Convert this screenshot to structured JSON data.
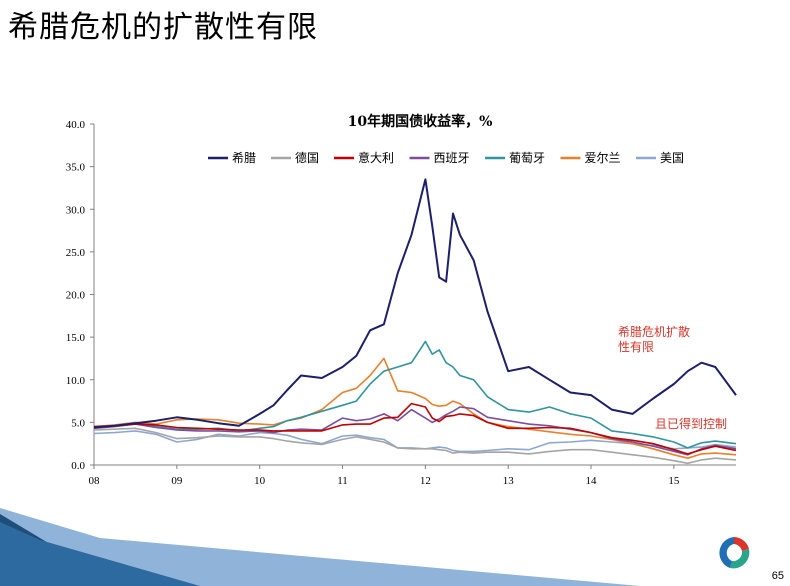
{
  "slide": {
    "title": "希腊危机的扩散性有限",
    "page_number": "65"
  },
  "colors": {
    "希腊": "#1c1f6b",
    "德国": "#a5a5a5",
    "意大利": "#c00000",
    "西班牙": "#7b4f9d",
    "葡萄牙": "#31949f",
    "爱尔兰": "#e8802c",
    "美国": "#8ea7d1",
    "annotation": "#d9352a",
    "logo_red": "#d9352a",
    "logo_blue": "#1f6fb4",
    "logo_teal": "#2aa58c",
    "footer_dark": "#1f4e79",
    "footer_light": "#8fb3d9"
  },
  "chart_data": {
    "type": "line",
    "title": "10年期国债收益率，%",
    "xlabel": "",
    "ylabel": "",
    "ylim": [
      0,
      40
    ],
    "xlim": [
      "2008-01",
      "2015-10"
    ],
    "y_ticks": [
      "0.0",
      "5.0",
      "10.0",
      "15.0",
      "20.0",
      "25.0",
      "30.0",
      "35.0",
      "40.0"
    ],
    "x_ticks": [
      "08",
      "09",
      "10",
      "11",
      "12",
      "13",
      "14",
      "15"
    ],
    "legend_position": "top",
    "grid": false,
    "x": [
      "2008-01",
      "2008-04",
      "2008-07",
      "2008-10",
      "2009-01",
      "2009-04",
      "2009-07",
      "2009-10",
      "2010-01",
      "2010-03",
      "2010-05",
      "2010-07",
      "2010-10",
      "2011-01",
      "2011-03",
      "2011-05",
      "2011-07",
      "2011-09",
      "2011-11",
      "2012-01",
      "2012-02",
      "2012-03",
      "2012-04",
      "2012-05",
      "2012-06",
      "2012-08",
      "2012-10",
      "2013-01",
      "2013-04",
      "2013-07",
      "2013-10",
      "2014-01",
      "2014-04",
      "2014-07",
      "2014-10",
      "2015-01",
      "2015-03",
      "2015-05",
      "2015-07",
      "2015-10"
    ],
    "series": [
      {
        "name": "希腊",
        "values": [
          4.4,
          4.6,
          4.9,
          5.2,
          5.6,
          5.3,
          4.9,
          4.6,
          6.0,
          7.0,
          8.8,
          10.5,
          10.2,
          11.5,
          12.8,
          15.8,
          16.5,
          22.5,
          27.0,
          33.5,
          28.0,
          22.0,
          21.5,
          29.5,
          27.0,
          24.0,
          18.0,
          11.0,
          11.5,
          10.0,
          8.5,
          8.2,
          6.5,
          6.0,
          7.8,
          9.5,
          11.0,
          12.0,
          11.5,
          8.2
        ]
      },
      {
        "name": "德国",
        "values": [
          4.1,
          4.2,
          4.3,
          3.8,
          3.1,
          3.2,
          3.4,
          3.3,
          3.3,
          3.1,
          2.8,
          2.6,
          2.4,
          3.0,
          3.3,
          3.0,
          2.7,
          2.0,
          1.9,
          1.9,
          1.9,
          1.8,
          1.7,
          1.4,
          1.5,
          1.4,
          1.5,
          1.5,
          1.3,
          1.6,
          1.8,
          1.8,
          1.5,
          1.2,
          0.9,
          0.5,
          0.2,
          0.6,
          0.8,
          0.6
        ]
      },
      {
        "name": "意大利",
        "values": [
          4.5,
          4.6,
          4.8,
          4.7,
          4.4,
          4.3,
          4.2,
          4.1,
          4.1,
          4.0,
          4.0,
          4.0,
          4.0,
          4.7,
          4.8,
          4.8,
          5.5,
          5.6,
          7.2,
          6.8,
          5.5,
          5.1,
          5.7,
          5.8,
          6.0,
          5.8,
          5.0,
          4.3,
          4.3,
          4.4,
          4.3,
          3.8,
          3.2,
          2.9,
          2.5,
          1.8,
          1.3,
          1.8,
          2.2,
          1.7
        ]
      },
      {
        "name": "西班牙",
        "values": [
          4.3,
          4.5,
          4.8,
          4.4,
          4.1,
          4.0,
          4.0,
          3.9,
          4.0,
          3.8,
          4.1,
          4.2,
          4.1,
          5.5,
          5.2,
          5.4,
          6.0,
          5.2,
          6.5,
          5.5,
          5.0,
          5.4,
          5.9,
          6.3,
          6.8,
          6.6,
          5.6,
          5.2,
          4.8,
          4.6,
          4.2,
          3.8,
          3.1,
          2.7,
          2.2,
          1.6,
          1.2,
          1.9,
          2.3,
          1.9
        ]
      },
      {
        "name": "葡萄牙",
        "values": [
          4.4,
          4.6,
          4.9,
          4.5,
          4.2,
          4.2,
          4.3,
          4.0,
          4.3,
          4.5,
          5.2,
          5.6,
          6.3,
          7.0,
          7.5,
          9.5,
          11.0,
          11.5,
          12.0,
          14.5,
          13.0,
          13.5,
          12.0,
          11.5,
          10.5,
          10.0,
          8.0,
          6.5,
          6.2,
          6.8,
          6.0,
          5.5,
          4.0,
          3.7,
          3.3,
          2.7,
          2.0,
          2.6,
          2.8,
          2.5
        ]
      },
      {
        "name": "爱尔兰",
        "values": [
          4.5,
          4.7,
          5.0,
          4.8,
          5.3,
          5.4,
          5.3,
          4.9,
          4.8,
          4.7,
          5.2,
          5.5,
          6.5,
          8.5,
          9.0,
          10.5,
          12.5,
          8.7,
          8.5,
          7.8,
          7.1,
          6.9,
          7.0,
          7.5,
          7.2,
          6.0,
          5.0,
          4.5,
          4.2,
          3.9,
          3.6,
          3.4,
          3.0,
          2.5,
          1.9,
          1.2,
          0.8,
          1.3,
          1.4,
          1.2
        ]
      },
      {
        "name": "美国",
        "values": [
          3.7,
          3.8,
          4.0,
          3.6,
          2.7,
          3.0,
          3.6,
          3.4,
          3.8,
          3.7,
          3.5,
          3.0,
          2.5,
          3.4,
          3.5,
          3.2,
          3.0,
          2.0,
          2.0,
          1.9,
          2.0,
          2.1,
          2.0,
          1.7,
          1.6,
          1.6,
          1.7,
          1.9,
          1.8,
          2.6,
          2.7,
          2.9,
          2.7,
          2.5,
          2.3,
          1.9,
          2.0,
          2.1,
          2.4,
          2.1
        ]
      }
    ],
    "annotations": [
      {
        "text_lines": [
          "希腊危机扩散",
          "性有限"
        ],
        "anchor": "right-middle"
      },
      {
        "text_lines": [
          "且已得到控制"
        ],
        "anchor": "right-lower"
      }
    ]
  }
}
